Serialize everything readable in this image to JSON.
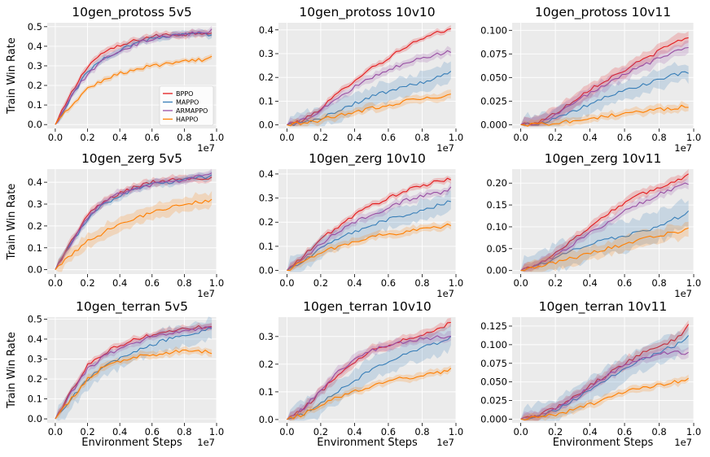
{
  "legend_entries": [
    "BPPO",
    "MAPPO",
    "ARMAPPO",
    "HAPPO"
  ],
  "colors": {
    "BPPO": "#e41a1c",
    "MAPPO": "#377eb8",
    "ARMAPPO": "#984ea3",
    "HAPPO": "#ff7f00",
    "background": "#ebebeb",
    "grid": "#ffffff"
  },
  "chart_data": [
    {
      "type": "line",
      "title": "10gen_protoss 5v5",
      "ylabel": "Train Win Rate",
      "xlabel": "",
      "x_scale_label": "1e7",
      "xlim": [
        -0.05,
        1.0
      ],
      "ylim": [
        -0.02,
        0.52
      ],
      "xticks": [
        "0.0",
        "0.2",
        "0.4",
        "0.6",
        "0.8",
        "1.0"
      ],
      "yticks": [
        "0.0",
        "0.1",
        "0.2",
        "0.3",
        "0.4",
        "0.5"
      ],
      "x": [
        0.0,
        0.1,
        0.2,
        0.3,
        0.4,
        0.5,
        0.6,
        0.7,
        0.8,
        0.9,
        0.97
      ],
      "series": [
        {
          "name": "BPPO",
          "values": [
            0.0,
            0.16,
            0.3,
            0.37,
            0.4,
            0.43,
            0.45,
            0.46,
            0.46,
            0.47,
            0.47
          ],
          "band": 0.02
        },
        {
          "name": "MAPPO",
          "values": [
            0.0,
            0.14,
            0.27,
            0.34,
            0.38,
            0.42,
            0.44,
            0.45,
            0.46,
            0.46,
            0.46
          ],
          "band": 0.02
        },
        {
          "name": "ARMAPPO",
          "values": [
            0.0,
            0.14,
            0.26,
            0.33,
            0.38,
            0.41,
            0.44,
            0.45,
            0.46,
            0.47,
            0.48
          ],
          "band": 0.02
        },
        {
          "name": "HAPPO",
          "values": [
            0.0,
            0.1,
            0.18,
            0.23,
            0.26,
            0.28,
            0.3,
            0.31,
            0.32,
            0.33,
            0.34
          ],
          "band": 0.015
        }
      ],
      "legend": "center-right"
    },
    {
      "type": "line",
      "title": "10gen_protoss 10v10",
      "xlabel": "",
      "x_scale_label": "1e7",
      "xlim": [
        -0.05,
        1.0
      ],
      "ylim": [
        -0.015,
        0.43
      ],
      "xticks": [
        "0.0",
        "0.2",
        "0.4",
        "0.6",
        "0.8",
        "1.0"
      ],
      "yticks": [
        "0.0",
        "0.1",
        "0.2",
        "0.3",
        "0.4"
      ],
      "x": [
        0.0,
        0.1,
        0.2,
        0.3,
        0.4,
        0.5,
        0.6,
        0.7,
        0.8,
        0.9,
        0.97
      ],
      "series": [
        {
          "name": "BPPO",
          "values": [
            0.0,
            0.02,
            0.07,
            0.13,
            0.19,
            0.24,
            0.28,
            0.33,
            0.36,
            0.39,
            0.4
          ],
          "band": 0.015
        },
        {
          "name": "MAPPO",
          "values": [
            0.0,
            0.01,
            0.03,
            0.06,
            0.09,
            0.12,
            0.14,
            0.16,
            0.18,
            0.2,
            0.22
          ],
          "band": 0.05
        },
        {
          "name": "ARMAPPO",
          "values": [
            0.0,
            0.02,
            0.06,
            0.11,
            0.16,
            0.2,
            0.23,
            0.26,
            0.28,
            0.3,
            0.31
          ],
          "band": 0.02
        },
        {
          "name": "HAPPO",
          "values": [
            0.0,
            0.01,
            0.02,
            0.04,
            0.05,
            0.07,
            0.08,
            0.1,
            0.11,
            0.12,
            0.13
          ],
          "band": 0.02
        }
      ]
    },
    {
      "type": "line",
      "title": "10gen_protoss 10v11",
      "xlabel": "",
      "x_scale_label": "1e7",
      "xlim": [
        -0.05,
        1.0
      ],
      "ylim": [
        -0.004,
        0.108
      ],
      "xticks": [
        "0.0",
        "0.2",
        "0.4",
        "0.6",
        "0.8",
        "1.0"
      ],
      "yticks": [
        "0.000",
        "0.025",
        "0.050",
        "0.075",
        "0.100"
      ],
      "x": [
        0.0,
        0.1,
        0.2,
        0.3,
        0.4,
        0.5,
        0.6,
        0.7,
        0.8,
        0.9,
        0.97
      ],
      "series": [
        {
          "name": "BPPO",
          "values": [
            0.0,
            0.003,
            0.012,
            0.025,
            0.038,
            0.048,
            0.058,
            0.068,
            0.078,
            0.088,
            0.093
          ],
          "band": 0.008
        },
        {
          "name": "MAPPO",
          "values": [
            0.0,
            0.001,
            0.006,
            0.013,
            0.022,
            0.03,
            0.036,
            0.042,
            0.048,
            0.053,
            0.055
          ],
          "band": 0.012
        },
        {
          "name": "ARMAPPO",
          "values": [
            0.0,
            0.002,
            0.01,
            0.022,
            0.034,
            0.044,
            0.054,
            0.062,
            0.07,
            0.078,
            0.082
          ],
          "band": 0.008
        },
        {
          "name": "HAPPO",
          "values": [
            0.0,
            0.0,
            0.002,
            0.004,
            0.006,
            0.009,
            0.012,
            0.014,
            0.016,
            0.018,
            0.02
          ],
          "band": 0.005
        }
      ]
    },
    {
      "type": "line",
      "title": "10gen_zerg 5v5",
      "ylabel": "Train Win Rate",
      "xlabel": "",
      "x_scale_label": "1e7",
      "xlim": [
        -0.05,
        1.0
      ],
      "ylim": [
        -0.02,
        0.46
      ],
      "xticks": [
        "0.0",
        "0.2",
        "0.4",
        "0.6",
        "0.8",
        "1.0"
      ],
      "yticks": [
        "0.0",
        "0.1",
        "0.2",
        "0.3",
        "0.4"
      ],
      "x": [
        0.0,
        0.1,
        0.2,
        0.3,
        0.4,
        0.5,
        0.6,
        0.7,
        0.8,
        0.9,
        0.97
      ],
      "series": [
        {
          "name": "BPPO",
          "values": [
            0.0,
            0.13,
            0.25,
            0.31,
            0.35,
            0.38,
            0.4,
            0.41,
            0.42,
            0.42,
            0.42
          ],
          "band": 0.02
        },
        {
          "name": "MAPPO",
          "values": [
            0.0,
            0.12,
            0.23,
            0.3,
            0.34,
            0.37,
            0.39,
            0.4,
            0.41,
            0.42,
            0.43
          ],
          "band": 0.02
        },
        {
          "name": "ARMAPPO",
          "values": [
            0.0,
            0.12,
            0.24,
            0.31,
            0.35,
            0.37,
            0.39,
            0.4,
            0.41,
            0.43,
            0.44
          ],
          "band": 0.02
        },
        {
          "name": "HAPPO",
          "values": [
            0.0,
            0.07,
            0.13,
            0.17,
            0.21,
            0.24,
            0.26,
            0.28,
            0.3,
            0.31,
            0.32
          ],
          "band": 0.04
        }
      ]
    },
    {
      "type": "line",
      "title": "10gen_zerg 10v10",
      "xlabel": "",
      "x_scale_label": "1e7",
      "xlim": [
        -0.05,
        1.0
      ],
      "ylim": [
        -0.015,
        0.42
      ],
      "xticks": [
        "0.0",
        "0.2",
        "0.4",
        "0.6",
        "0.8",
        "1.0"
      ],
      "yticks": [
        "0.0",
        "0.1",
        "0.2",
        "0.3",
        "0.4"
      ],
      "x": [
        0.0,
        0.1,
        0.2,
        0.3,
        0.4,
        0.5,
        0.6,
        0.7,
        0.8,
        0.9,
        0.97
      ],
      "series": [
        {
          "name": "BPPO",
          "values": [
            0.0,
            0.06,
            0.13,
            0.18,
            0.23,
            0.27,
            0.3,
            0.33,
            0.35,
            0.37,
            0.38
          ],
          "band": 0.015
        },
        {
          "name": "MAPPO",
          "values": [
            0.0,
            0.04,
            0.09,
            0.13,
            0.16,
            0.19,
            0.21,
            0.23,
            0.25,
            0.27,
            0.29
          ],
          "band": 0.05
        },
        {
          "name": "ARMAPPO",
          "values": [
            0.0,
            0.05,
            0.11,
            0.16,
            0.2,
            0.23,
            0.26,
            0.29,
            0.31,
            0.32,
            0.34
          ],
          "band": 0.02
        },
        {
          "name": "HAPPO",
          "values": [
            0.0,
            0.04,
            0.07,
            0.1,
            0.12,
            0.14,
            0.15,
            0.16,
            0.17,
            0.18,
            0.19
          ],
          "band": 0.02
        }
      ]
    },
    {
      "type": "line",
      "title": "10gen_zerg 10v11",
      "xlabel": "",
      "x_scale_label": "1e7",
      "xlim": [
        -0.05,
        1.0
      ],
      "ylim": [
        -0.008,
        0.232
      ],
      "xticks": [
        "0.0",
        "0.2",
        "0.4",
        "0.6",
        "0.8",
        "1.0"
      ],
      "yticks": [
        "0.00",
        "0.05",
        "0.10",
        "0.15",
        "0.20"
      ],
      "x": [
        0.0,
        0.1,
        0.2,
        0.3,
        0.4,
        0.5,
        0.6,
        0.7,
        0.8,
        0.9,
        0.97
      ],
      "series": [
        {
          "name": "BPPO",
          "values": [
            0.0,
            0.015,
            0.04,
            0.07,
            0.1,
            0.13,
            0.155,
            0.175,
            0.19,
            0.205,
            0.22
          ],
          "band": 0.012
        },
        {
          "name": "MAPPO",
          "values": [
            0.0,
            0.01,
            0.03,
            0.045,
            0.06,
            0.07,
            0.08,
            0.09,
            0.1,
            0.12,
            0.135
          ],
          "band": 0.04
        },
        {
          "name": "ARMAPPO",
          "values": [
            0.0,
            0.013,
            0.035,
            0.06,
            0.085,
            0.11,
            0.135,
            0.155,
            0.175,
            0.19,
            0.2
          ],
          "band": 0.012
        },
        {
          "name": "HAPPO",
          "values": [
            0.0,
            0.008,
            0.018,
            0.028,
            0.04,
            0.05,
            0.06,
            0.07,
            0.08,
            0.088,
            0.095
          ],
          "band": 0.02
        }
      ]
    },
    {
      "type": "line",
      "title": "10gen_terran 5v5",
      "ylabel": "Train Win Rate",
      "xlabel": "Environment Steps",
      "x_scale_label": "1e7",
      "xlim": [
        -0.05,
        1.0
      ],
      "ylim": [
        -0.02,
        0.51
      ],
      "xticks": [
        "0.0",
        "0.2",
        "0.4",
        "0.6",
        "0.8",
        "1.0"
      ],
      "yticks": [
        "0.0",
        "0.1",
        "0.2",
        "0.3",
        "0.4",
        "0.5"
      ],
      "x": [
        0.0,
        0.1,
        0.2,
        0.3,
        0.4,
        0.5,
        0.6,
        0.7,
        0.8,
        0.9,
        0.97
      ],
      "series": [
        {
          "name": "BPPO",
          "values": [
            0.0,
            0.14,
            0.27,
            0.33,
            0.37,
            0.4,
            0.42,
            0.44,
            0.45,
            0.46,
            0.47
          ],
          "band": 0.02
        },
        {
          "name": "MAPPO",
          "values": [
            0.0,
            0.1,
            0.2,
            0.26,
            0.3,
            0.34,
            0.37,
            0.4,
            0.42,
            0.44,
            0.46
          ],
          "band": 0.06
        },
        {
          "name": "ARMAPPO",
          "values": [
            0.0,
            0.13,
            0.25,
            0.31,
            0.35,
            0.38,
            0.41,
            0.43,
            0.44,
            0.45,
            0.46
          ],
          "band": 0.02
        },
        {
          "name": "HAPPO",
          "values": [
            0.0,
            0.1,
            0.2,
            0.26,
            0.29,
            0.31,
            0.32,
            0.33,
            0.34,
            0.34,
            0.33
          ],
          "band": 0.02
        }
      ]
    },
    {
      "type": "line",
      "title": "10gen_terran 10v10",
      "xlabel": "Environment Steps",
      "x_scale_label": "1e7",
      "xlim": [
        -0.05,
        1.0
      ],
      "ylim": [
        -0.012,
        0.37
      ],
      "xticks": [
        "0.0",
        "0.2",
        "0.4",
        "0.6",
        "0.8",
        "1.0"
      ],
      "yticks": [
        "0.0",
        "0.1",
        "0.2",
        "0.3"
      ],
      "x": [
        0.0,
        0.1,
        0.2,
        0.3,
        0.4,
        0.5,
        0.6,
        0.7,
        0.8,
        0.9,
        0.97
      ],
      "series": [
        {
          "name": "BPPO",
          "values": [
            0.0,
            0.04,
            0.1,
            0.16,
            0.21,
            0.25,
            0.27,
            0.29,
            0.31,
            0.33,
            0.35
          ],
          "band": 0.02
        },
        {
          "name": "MAPPO",
          "values": [
            0.0,
            0.02,
            0.06,
            0.1,
            0.14,
            0.18,
            0.21,
            0.24,
            0.26,
            0.28,
            0.3
          ],
          "band": 0.05
        },
        {
          "name": "ARMAPPO",
          "values": [
            0.0,
            0.04,
            0.11,
            0.17,
            0.22,
            0.25,
            0.27,
            0.28,
            0.29,
            0.3,
            0.3
          ],
          "band": 0.02
        },
        {
          "name": "HAPPO",
          "values": [
            0.0,
            0.02,
            0.05,
            0.08,
            0.1,
            0.12,
            0.14,
            0.15,
            0.16,
            0.17,
            0.18
          ],
          "band": 0.015
        }
      ]
    },
    {
      "type": "line",
      "title": "10gen_terran 10v11",
      "xlabel": "Environment Steps",
      "x_scale_label": "1e7",
      "xlim": [
        -0.05,
        1.0
      ],
      "ylim": [
        -0.005,
        0.137
      ],
      "xticks": [
        "0.0",
        "0.2",
        "0.4",
        "0.6",
        "0.8",
        "1.0"
      ],
      "yticks": [
        "0.000",
        "0.025",
        "0.050",
        "0.075",
        "0.100",
        "0.125"
      ],
      "x": [
        0.0,
        0.1,
        0.2,
        0.3,
        0.4,
        0.5,
        0.6,
        0.7,
        0.8,
        0.9,
        0.97
      ],
      "series": [
        {
          "name": "BPPO",
          "values": [
            0.0,
            0.005,
            0.015,
            0.028,
            0.045,
            0.06,
            0.075,
            0.088,
            0.098,
            0.108,
            0.125
          ],
          "band": 0.008
        },
        {
          "name": "MAPPO",
          "values": [
            0.0,
            0.004,
            0.012,
            0.024,
            0.04,
            0.055,
            0.068,
            0.08,
            0.09,
            0.1,
            0.11
          ],
          "band": 0.02
        },
        {
          "name": "ARMAPPO",
          "values": [
            0.0,
            0.005,
            0.014,
            0.027,
            0.043,
            0.058,
            0.072,
            0.082,
            0.088,
            0.09,
            0.088
          ],
          "band": 0.008
        },
        {
          "name": "HAPPO",
          "values": [
            0.0,
            0.002,
            0.006,
            0.012,
            0.02,
            0.028,
            0.036,
            0.042,
            0.046,
            0.05,
            0.055
          ],
          "band": 0.006
        }
      ]
    }
  ]
}
